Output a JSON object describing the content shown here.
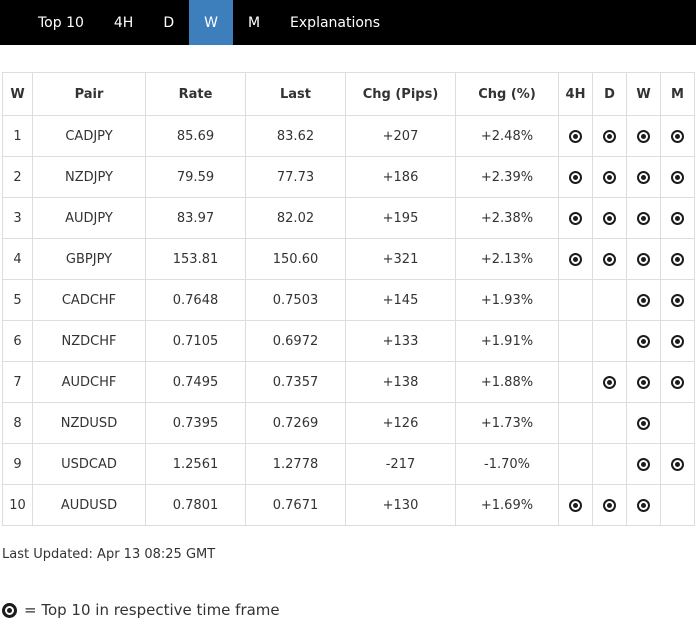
{
  "nav": {
    "tabs": [
      {
        "label": "Top 10",
        "active": false
      },
      {
        "label": "4H",
        "active": false
      },
      {
        "label": "D",
        "active": false
      },
      {
        "label": "W",
        "active": true
      },
      {
        "label": "M",
        "active": false
      },
      {
        "label": "Explanations",
        "active": false
      }
    ],
    "active_tab": "W"
  },
  "colors": {
    "nav_bg": "#000000",
    "active_tab_bg": "#3d7ebd",
    "table_border": "#dddddd",
    "text": "#333333",
    "icon": "#1c1c1c"
  },
  "icons": {
    "top10_indicator": "bullseye-icon"
  },
  "table": {
    "headers": {
      "rank": "W",
      "pair": "Pair",
      "rate": "Rate",
      "last": "Last",
      "chg_pips": "Chg (Pips)",
      "chg_pct": "Chg (%)",
      "h4": "4H",
      "d": "D",
      "w": "W",
      "m": "M"
    },
    "rows": [
      {
        "rank": "1",
        "pair": "CADJPY",
        "rate": "85.69",
        "last": "83.62",
        "chg_pips": "+207",
        "chg_pct": "+2.48%",
        "flags": [
          true,
          true,
          true,
          true
        ]
      },
      {
        "rank": "2",
        "pair": "NZDJPY",
        "rate": "79.59",
        "last": "77.73",
        "chg_pips": "+186",
        "chg_pct": "+2.39%",
        "flags": [
          true,
          true,
          true,
          true
        ]
      },
      {
        "rank": "3",
        "pair": "AUDJPY",
        "rate": "83.97",
        "last": "82.02",
        "chg_pips": "+195",
        "chg_pct": "+2.38%",
        "flags": [
          true,
          true,
          true,
          true
        ]
      },
      {
        "rank": "4",
        "pair": "GBPJPY",
        "rate": "153.81",
        "last": "150.60",
        "chg_pips": "+321",
        "chg_pct": "+2.13%",
        "flags": [
          true,
          true,
          true,
          true
        ]
      },
      {
        "rank": "5",
        "pair": "CADCHF",
        "rate": "0.7648",
        "last": "0.7503",
        "chg_pips": "+145",
        "chg_pct": "+1.93%",
        "flags": [
          false,
          false,
          true,
          true
        ]
      },
      {
        "rank": "6",
        "pair": "NZDCHF",
        "rate": "0.7105",
        "last": "0.6972",
        "chg_pips": "+133",
        "chg_pct": "+1.91%",
        "flags": [
          false,
          false,
          true,
          true
        ]
      },
      {
        "rank": "7",
        "pair": "AUDCHF",
        "rate": "0.7495",
        "last": "0.7357",
        "chg_pips": "+138",
        "chg_pct": "+1.88%",
        "flags": [
          false,
          true,
          true,
          true
        ]
      },
      {
        "rank": "8",
        "pair": "NZDUSD",
        "rate": "0.7395",
        "last": "0.7269",
        "chg_pips": "+126",
        "chg_pct": "+1.73%",
        "flags": [
          false,
          false,
          true,
          false
        ]
      },
      {
        "rank": "9",
        "pair": "USDCAD",
        "rate": "1.2561",
        "last": "1.2778",
        "chg_pips": "-217",
        "chg_pct": "-1.70%",
        "flags": [
          false,
          false,
          true,
          true
        ]
      },
      {
        "rank": "10",
        "pair": "AUDUSD",
        "rate": "0.7801",
        "last": "0.7671",
        "chg_pips": "+130",
        "chg_pct": "+1.69%",
        "flags": [
          true,
          true,
          true,
          false
        ]
      }
    ]
  },
  "footer": {
    "last_updated": "Last Updated: Apr 13 08:25 GMT",
    "legend": "= Top 10 in respective time frame"
  }
}
